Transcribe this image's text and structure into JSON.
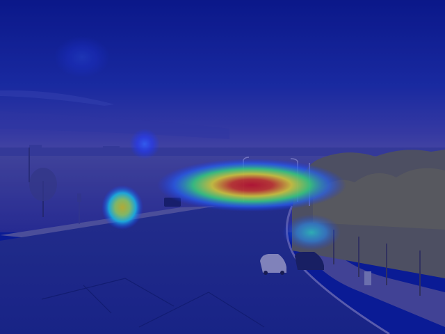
{
  "image": {
    "description_kind": "photo-with-heatmap-overlay"
  },
  "palette": {
    "sky_top": "#0b1780",
    "sky_mid": "#20309a",
    "horizon": "#4a4a9a",
    "ground": "#2a2a88",
    "road": "#1f2a7a",
    "trees": "#5a5a48",
    "heat_low": "#1e3cff",
    "heat_cyan": "#23e0d8",
    "heat_yellow": "#f0f020",
    "heat_red": "#e01515"
  },
  "heatmap": {
    "hotspots": [
      {
        "name": "main-hotspot",
        "intensity": 1.0
      },
      {
        "name": "left-hotspot",
        "intensity": 0.75
      },
      {
        "name": "sky-hotspot",
        "intensity": 0.35
      },
      {
        "name": "tree-hotspot",
        "intensity": 0.45
      }
    ]
  }
}
